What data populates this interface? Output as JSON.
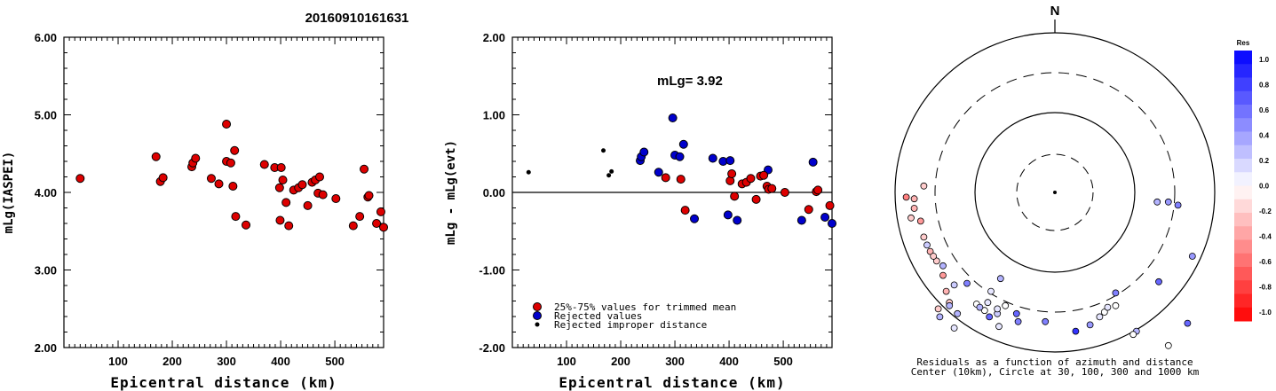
{
  "chart_data": [
    {
      "type": "scatter",
      "title": "20160910161631",
      "xlabel": "Epicentral distance (km)",
      "ylabel": "mLg(IASPEI)",
      "xlim": [
        0,
        590
      ],
      "ylim": [
        2.0,
        6.0
      ],
      "x_ticks": [
        "100",
        "200",
        "300",
        "400",
        "500"
      ],
      "y_ticks": [
        "2.00",
        "3.00",
        "4.00",
        "5.00",
        "6.00"
      ],
      "points": [
        [
          30,
          4.18
        ],
        [
          170,
          4.46
        ],
        [
          178,
          4.14
        ],
        [
          183,
          4.19
        ],
        [
          236,
          4.33
        ],
        [
          238,
          4.38
        ],
        [
          243,
          4.44
        ],
        [
          272,
          4.18
        ],
        [
          286,
          4.11
        ],
        [
          300,
          4.88
        ],
        [
          300,
          4.4
        ],
        [
          308,
          4.38
        ],
        [
          312,
          4.08
        ],
        [
          315,
          4.54
        ],
        [
          317,
          3.69
        ],
        [
          336,
          3.58
        ],
        [
          370,
          4.36
        ],
        [
          389,
          4.32
        ],
        [
          398,
          4.06
        ],
        [
          399,
          3.64
        ],
        [
          401,
          4.32
        ],
        [
          404,
          4.16
        ],
        [
          410,
          3.87
        ],
        [
          415,
          3.57
        ],
        [
          424,
          4.03
        ],
        [
          433,
          4.06
        ],
        [
          440,
          4.1
        ],
        [
          450,
          3.83
        ],
        [
          458,
          4.13
        ],
        [
          464,
          4.16
        ],
        [
          469,
          3.99
        ],
        [
          472,
          4.2
        ],
        [
          478,
          3.97
        ],
        [
          502,
          3.92
        ],
        [
          534,
          3.57
        ],
        [
          546,
          3.69
        ],
        [
          554,
          4.3
        ],
        [
          561,
          3.94
        ],
        [
          563,
          3.96
        ],
        [
          577,
          3.6
        ],
        [
          585,
          3.75
        ],
        [
          590,
          3.55
        ]
      ]
    },
    {
      "type": "scatter",
      "xlabel": "Epicentral distance (km)",
      "ylabel": "mLg - mLg(evt)",
      "xlim": [
        0,
        590
      ],
      "ylim": [
        -2.0,
        2.0
      ],
      "x_ticks": [
        "100",
        "200",
        "300",
        "400",
        "500"
      ],
      "y_ticks": [
        "-2.00",
        "-1.00",
        "0.00",
        "1.00",
        "2.00"
      ],
      "annotation": "mLg= 3.92",
      "legend": [
        "25%-75% values for trimmed mean",
        "Rejected values",
        "Rejected improper distance"
      ],
      "colors": {
        "trimmed": "#dd0000",
        "rejected": "#0000cc",
        "improper": "#000000"
      },
      "trimmed_points": [
        [
          283,
          0.19
        ],
        [
          311,
          0.17
        ],
        [
          319,
          -0.23
        ],
        [
          402,
          0.15
        ],
        [
          405,
          0.24
        ],
        [
          410,
          -0.05
        ],
        [
          424,
          0.11
        ],
        [
          432,
          0.13
        ],
        [
          440,
          0.18
        ],
        [
          450,
          -0.09
        ],
        [
          458,
          0.21
        ],
        [
          464,
          0.22
        ],
        [
          470,
          0.08
        ],
        [
          473,
          0.04
        ],
        [
          479,
          0.05
        ],
        [
          503,
          0.0
        ],
        [
          547,
          -0.22
        ],
        [
          561,
          0.01
        ],
        [
          564,
          0.03
        ],
        [
          586,
          -0.17
        ]
      ],
      "rejected_points": [
        [
          236,
          0.41
        ],
        [
          238,
          0.46
        ],
        [
          243,
          0.52
        ],
        [
          270,
          0.26
        ],
        [
          296,
          0.96
        ],
        [
          300,
          0.48
        ],
        [
          309,
          0.46
        ],
        [
          316,
          0.62
        ],
        [
          336,
          -0.34
        ],
        [
          370,
          0.44
        ],
        [
          389,
          0.4
        ],
        [
          398,
          -0.29
        ],
        [
          402,
          0.41
        ],
        [
          415,
          -0.36
        ],
        [
          472,
          0.29
        ],
        [
          534,
          -0.36
        ],
        [
          555,
          0.39
        ],
        [
          577,
          -0.32
        ],
        [
          590,
          -0.4
        ]
      ],
      "improper_points": [
        [
          30,
          0.26
        ],
        [
          168,
          0.54
        ],
        [
          178,
          0.22
        ],
        [
          183,
          0.27
        ]
      ]
    },
    {
      "type": "polar-scatter",
      "north_label": "N",
      "caption_1": "Residuals as a function of azimuth and distance",
      "caption_2": "Center (10km), Circle at 30, 100, 300 and 1000 km",
      "colorbar_title": "Res",
      "colorbar_ticks": [
        "1.0",
        "0.8",
        "0.6",
        "0.4",
        "0.2",
        "0.0",
        "-0.2",
        "-0.4",
        "-0.6",
        "-0.8",
        "-1.0"
      ],
      "points": [
        [
          -0.34,
          -0.54,
          0.3
        ],
        [
          0.13,
          -0.87,
          0.8
        ],
        [
          0.31,
          -0.75,
          0.0
        ],
        [
          0.28,
          -0.78,
          0.1
        ],
        [
          0.33,
          -0.72,
          0.1
        ],
        [
          0.38,
          -0.71,
          0.0
        ],
        [
          0.65,
          -0.56,
          0.6
        ],
        [
          0.86,
          -0.4,
          0.4
        ],
        [
          0.77,
          -0.08,
          0.5
        ],
        [
          0.71,
          -0.06,
          0.4
        ],
        [
          0.64,
          -0.06,
          0.3
        ],
        [
          -0.23,
          -0.81,
          0.5
        ],
        [
          -0.24,
          -0.76,
          0.6
        ],
        [
          -0.41,
          -0.78,
          0.6
        ],
        [
          -0.35,
          -0.84,
          0.1
        ],
        [
          -0.06,
          -0.81,
          0.5
        ],
        [
          0.22,
          -0.83,
          0.4
        ],
        [
          0.38,
          -0.63,
          0.5
        ],
        [
          0.51,
          -0.87,
          0.3
        ],
        [
          0.49,
          -0.89,
          0.0
        ],
        [
          0.71,
          -0.96,
          0.0
        ],
        [
          0.83,
          -0.82,
          0.6
        ],
        [
          -0.72,
          -0.78,
          0.3
        ],
        [
          -0.63,
          -0.85,
          0.1
        ],
        [
          -0.61,
          -0.76,
          0.3
        ],
        [
          -0.73,
          -0.73,
          -0.2
        ],
        [
          -0.66,
          -0.69,
          -0.2
        ],
        [
          -0.68,
          -0.62,
          -0.3
        ],
        [
          -0.7,
          -0.52,
          -0.4
        ],
        [
          -0.74,
          -0.43,
          -0.2
        ],
        [
          -0.78,
          -0.37,
          -0.3
        ],
        [
          -0.82,
          -0.28,
          -0.2
        ],
        [
          -0.84,
          -0.18,
          -0.4
        ],
        [
          -0.88,
          -0.1,
          -0.3
        ],
        [
          -0.93,
          -0.03,
          -0.5
        ],
        [
          -0.88,
          -0.04,
          -0.3
        ],
        [
          -0.82,
          0.04,
          -0.2
        ],
        [
          -0.76,
          -0.4,
          -0.2
        ],
        [
          -0.9,
          -0.16,
          -0.2
        ],
        [
          -0.8,
          -0.33,
          0.2
        ],
        [
          -0.7,
          -0.46,
          0.3
        ],
        [
          -0.66,
          -0.71,
          0.3
        ],
        [
          -0.55,
          -0.57,
          0.5
        ],
        [
          -0.63,
          -0.58,
          0.2
        ],
        [
          -0.49,
          -0.7,
          0.0
        ],
        [
          -0.44,
          -0.74,
          0.0
        ],
        [
          -0.42,
          -0.69,
          0.1
        ],
        [
          -0.47,
          -0.72,
          0.3
        ],
        [
          -0.36,
          -0.76,
          0.2
        ],
        [
          -0.36,
          -0.73,
          0.1
        ],
        [
          -0.31,
          -0.71,
          0.0
        ],
        [
          -0.4,
          -0.62,
          0.1
        ]
      ]
    }
  ]
}
